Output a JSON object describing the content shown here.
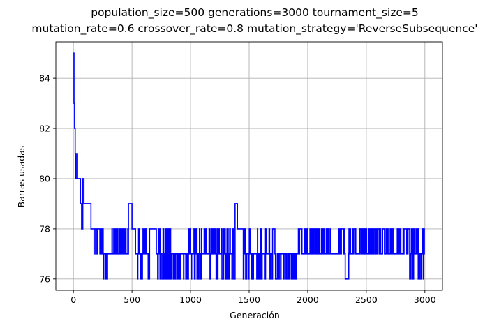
{
  "chart_data": {
    "type": "line",
    "title_lines": [
      "population_size=500 generations=3000 tournament_size=5",
      "mutation_rate=0.6 crossover_rate=0.8 mutation_strategy='ReverseSubsequence'"
    ],
    "xlabel": "Generación",
    "ylabel": "Barras usadas",
    "xlim": [
      -150,
      3150
    ],
    "ylim": [
      75.55,
      85.45
    ],
    "xticks": [
      0,
      500,
      1000,
      1500,
      2000,
      2500,
      3000
    ],
    "yticks": [
      76,
      78,
      80,
      82,
      84
    ],
    "grid": true,
    "line_color": "#0000ff",
    "series": [
      {
        "segments": [
          {
            "range": [
              0,
              5
            ],
            "value": 85
          },
          {
            "range": [
              5,
              10
            ],
            "value": 83
          },
          {
            "range": [
              10,
              15
            ],
            "value": 82
          },
          {
            "range": [
              15,
              20
            ],
            "value": 81
          },
          {
            "range": [
              20,
              30
            ],
            "value": 80
          },
          {
            "range": [
              30,
              35
            ],
            "value": 81
          },
          {
            "range": [
              35,
              60
            ],
            "value": 80
          },
          {
            "range": [
              60,
              70
            ],
            "value": 79
          },
          {
            "range": [
              70,
              80
            ],
            "value": 78
          },
          {
            "range": [
              80,
              90
            ],
            "value": 80
          },
          {
            "range": [
              90,
              150
            ],
            "value": 79
          },
          {
            "range": [
              150,
              250
            ],
            "value": 78,
            "noise": [
              77,
              78
            ],
            "density": 0.6
          },
          {
            "range": [
              250,
              300
            ],
            "value": 77,
            "noise": [
              76,
              77,
              78
            ],
            "density": 0.7
          },
          {
            "range": [
              300,
              470
            ],
            "value": 77,
            "noise": [
              77,
              78
            ],
            "density": 0.75
          },
          {
            "range": [
              470,
              500
            ],
            "value": 79,
            "noise": [
              78,
              79
            ],
            "density": 0.6
          },
          {
            "range": [
              500,
              530
            ],
            "value": 78
          },
          {
            "range": [
              530,
              650
            ],
            "value": 77,
            "noise": [
              76,
              77,
              78
            ],
            "density": 0.75
          },
          {
            "range": [
              650,
              700
            ],
            "value": 78
          },
          {
            "range": [
              700,
              830
            ],
            "value": 77,
            "noise": [
              76,
              77,
              78
            ],
            "density": 0.7
          },
          {
            "range": [
              830,
              980
            ],
            "value": 77,
            "noise": [
              76,
              77
            ],
            "density": 0.55
          },
          {
            "range": [
              980,
              1380
            ],
            "value": 77,
            "noise": [
              76,
              77,
              78
            ],
            "density": 0.8
          },
          {
            "range": [
              1380,
              1400
            ],
            "value": 79
          },
          {
            "range": [
              1400,
              1450
            ],
            "value": 78
          },
          {
            "range": [
              1450,
              1700
            ],
            "value": 77,
            "noise": [
              76,
              77,
              78
            ],
            "density": 0.7
          },
          {
            "range": [
              1700,
              1720
            ],
            "value": 78
          },
          {
            "range": [
              1720,
              1920
            ],
            "value": 77,
            "noise": [
              76,
              77
            ],
            "density": 0.7
          },
          {
            "range": [
              1920,
              2320
            ],
            "value": 77,
            "noise": [
              77,
              78
            ],
            "density": 0.85
          },
          {
            "range": [
              2320,
              2350
            ],
            "value": 76
          },
          {
            "range": [
              2350,
              2870
            ],
            "value": 77,
            "noise": [
              77,
              78
            ],
            "density": 0.85
          },
          {
            "range": [
              2870,
              2880
            ],
            "value": 76
          },
          {
            "range": [
              2880,
              3000
            ],
            "value": 77,
            "noise": [
              77,
              78,
              76
            ],
            "density": 0.7
          }
        ]
      }
    ]
  }
}
